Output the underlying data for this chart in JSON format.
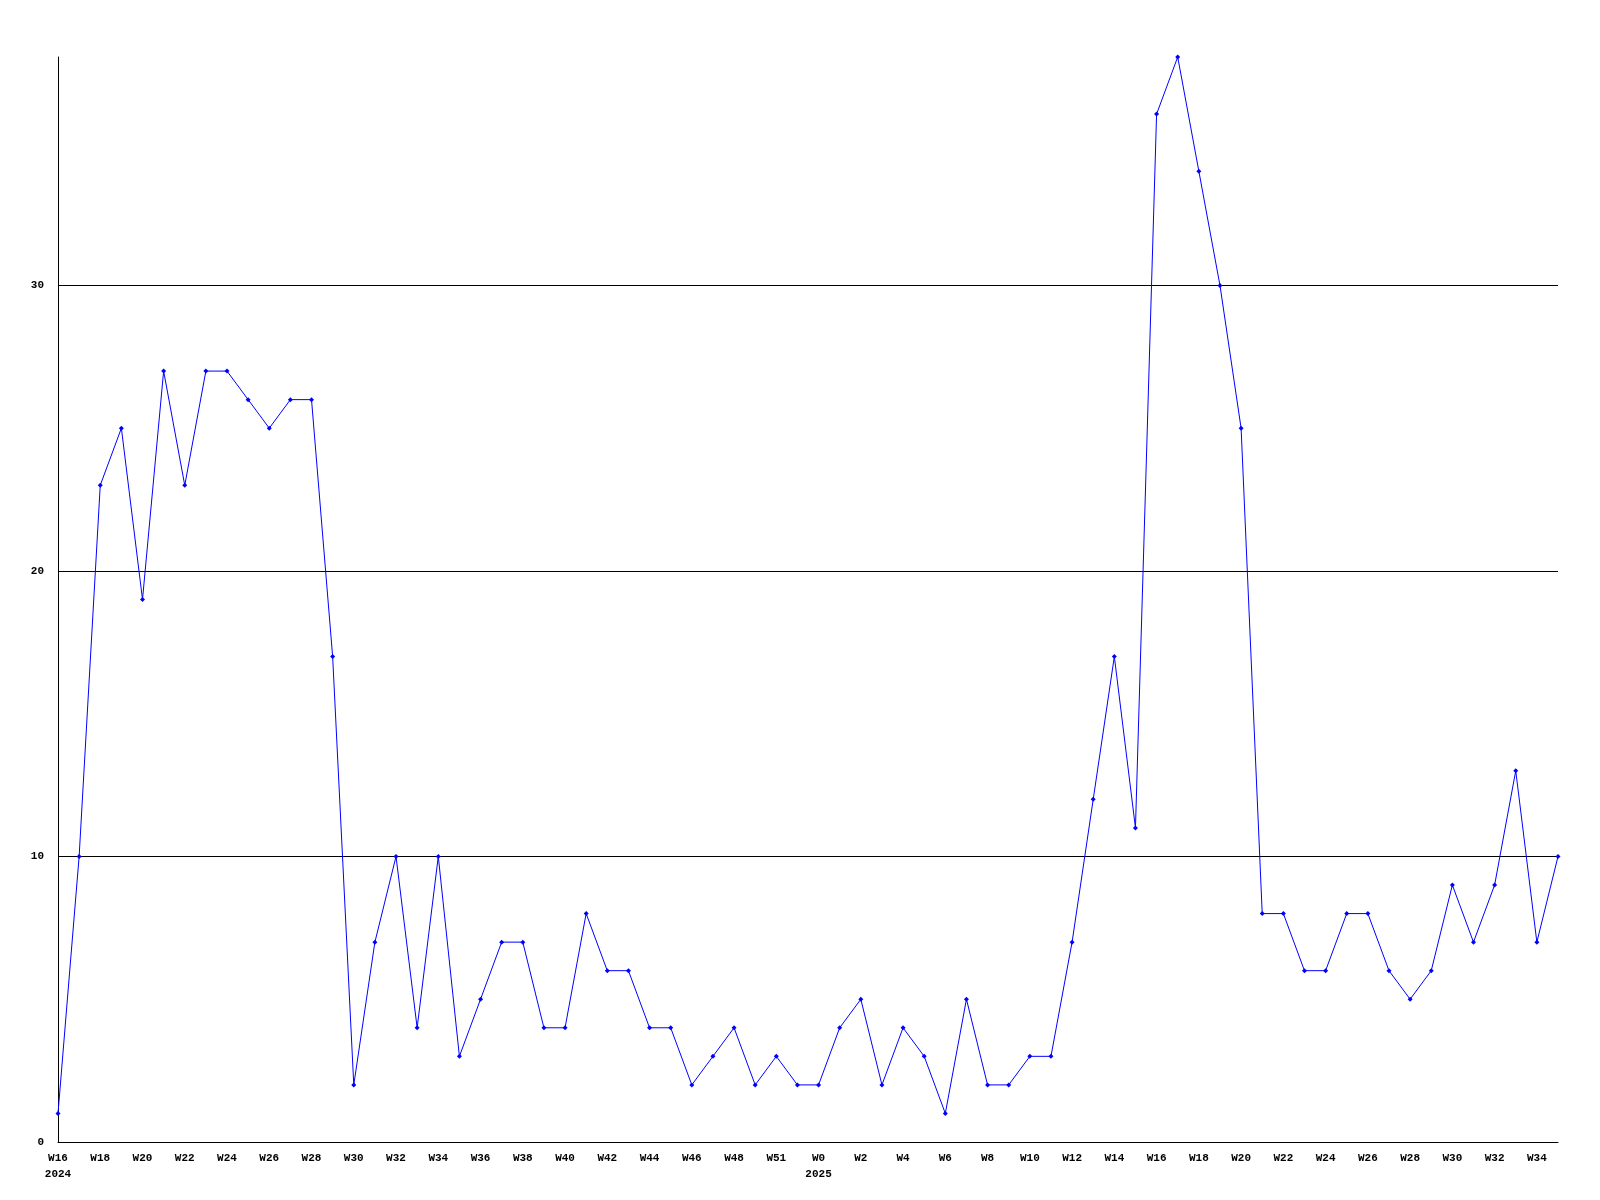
{
  "chart_data": {
    "type": "line",
    "categories": [
      "W16\n2024",
      null,
      "W18",
      null,
      "W20",
      null,
      "W22",
      null,
      "W24",
      null,
      "W26",
      null,
      "W28",
      null,
      "W30",
      null,
      "W32",
      null,
      "W34",
      null,
      "W36",
      null,
      "W38",
      null,
      "W40",
      null,
      "W42",
      null,
      "W44",
      null,
      "W46",
      null,
      "W48",
      null,
      "W51",
      null,
      "W0\n2025",
      null,
      "W2",
      null,
      "W4",
      null,
      "W6",
      null,
      "W8",
      null,
      "W10",
      null,
      "W12",
      null,
      "W14",
      null,
      "W16",
      null,
      "W18",
      null,
      "W20",
      null,
      "W22",
      null,
      "W24",
      null,
      "W26",
      null,
      "W28",
      null,
      "W30",
      null,
      "W32",
      null,
      "W34",
      null
    ],
    "series": [
      {
        "color": "#0000ff",
        "values": [
          1,
          10,
          23,
          25,
          19,
          27,
          23,
          27,
          27,
          26,
          25,
          26,
          26,
          17,
          2,
          7,
          10,
          4,
          10,
          3,
          5,
          7,
          7,
          4,
          4,
          8,
          6,
          6,
          4,
          4,
          2,
          3,
          4,
          2,
          3,
          2,
          2,
          4,
          5,
          2,
          4,
          3,
          1,
          5,
          2,
          2,
          3,
          3,
          7,
          12,
          17,
          11,
          36,
          38,
          34,
          30,
          25,
          8,
          8,
          6,
          6,
          8,
          8,
          6,
          5,
          6,
          9,
          7,
          9,
          13,
          7,
          10
        ]
      }
    ],
    "ylim": [
      0,
      38
    ],
    "yticks": [
      0,
      10,
      20,
      30
    ],
    "grid": "y",
    "marker": "diamond",
    "line_style": "solid"
  }
}
